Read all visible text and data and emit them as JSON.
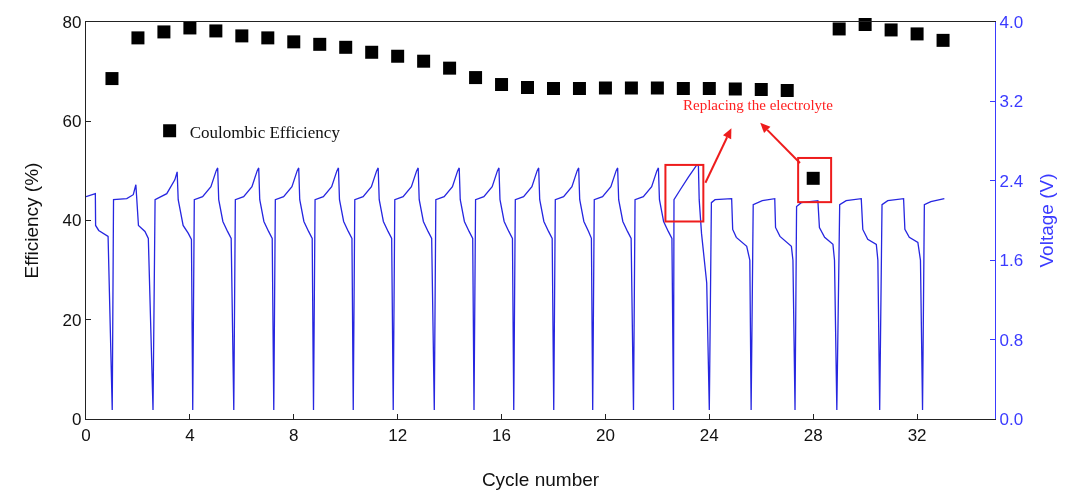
{
  "chart_data": {
    "type": "scatter",
    "xlabel": "Cycle number",
    "ylabel": "Efficiency (%)",
    "y2label": "Voltage (V)",
    "xlim": [
      0,
      35
    ],
    "xticks": [
      0,
      4,
      8,
      12,
      16,
      20,
      24,
      28,
      32
    ],
    "ylim": [
      0,
      80
    ],
    "yticks": [
      0,
      20,
      40,
      60,
      80
    ],
    "y2lim": [
      0,
      4
    ],
    "y2ticks": [
      {
        "value": 0,
        "label": "0.0"
      },
      {
        "value": 0.8,
        "label": "0.8"
      },
      {
        "value": 1.6,
        "label": "1.6"
      },
      {
        "value": 2.4,
        "label": "2.4"
      },
      {
        "value": 3.2,
        "label": "3.2"
      },
      {
        "value": 4,
        "label": "4.0"
      }
    ],
    "grid": false,
    "legend": "left",
    "annotations": [
      "Replacing the electrolyte"
    ],
    "series": [
      {
        "name": "Coulombic Efficiency",
        "marker": "square",
        "color": "#000000",
        "x": [
          1,
          2,
          3,
          4,
          5,
          6,
          7,
          8,
          9,
          10,
          11,
          12,
          13,
          14,
          15,
          16,
          17,
          18,
          19,
          20,
          21,
          22,
          23,
          24,
          25,
          26,
          27,
          28,
          29,
          30,
          31,
          32,
          33
        ],
        "values": [
          68.6,
          76.8,
          78,
          78.8,
          78.2,
          77.2,
          76.8,
          76,
          75.5,
          74.9,
          73.9,
          73.1,
          72.1,
          70.7,
          68.8,
          67.4,
          66.8,
          66.6,
          66.6,
          66.7,
          66.7,
          66.7,
          66.6,
          66.6,
          66.5,
          66.4,
          66.2,
          48.5,
          78.6,
          79.5,
          78.4,
          77.6,
          76.3
        ]
      },
      {
        "type": "line",
        "axis": "y2",
        "marker": "none",
        "line_style": "solid",
        "color": "#2626e0",
        "x": [
          0,
          0.36,
          0.37,
          0.49,
          0.85,
          1.01,
          1.06,
          1.57,
          1.82,
          1.92,
          2.02,
          2.27,
          2.4,
          2.58,
          2.66,
          3.11,
          3.42,
          3.51,
          3.55,
          3.74,
          3.94,
          4.06,
          4.11,
          4.17,
          4.49,
          4.81,
          5.01,
          5.07,
          5.11,
          5.27,
          5.45,
          5.59,
          5.69,
          5.75,
          6.07,
          6.39,
          6.59,
          6.65,
          6.69,
          6.85,
          7.03,
          7.17,
          7.23,
          7.29,
          7.61,
          7.93,
          8.13,
          8.19,
          8.23,
          8.39,
          8.57,
          8.71,
          8.76,
          8.82,
          9.14,
          9.46,
          9.66,
          9.72,
          9.76,
          9.92,
          10.1,
          10.24,
          10.29,
          10.35,
          10.67,
          10.99,
          11.19,
          11.25,
          11.29,
          11.45,
          11.63,
          11.77,
          11.83,
          11.89,
          12.21,
          12.53,
          12.73,
          12.79,
          12.83,
          12.99,
          13.17,
          13.31,
          13.41,
          13.47,
          13.79,
          14.11,
          14.31,
          14.37,
          14.41,
          14.57,
          14.75,
          14.89,
          14.94,
          15.0,
          15.32,
          15.64,
          15.84,
          15.9,
          15.94,
          16.1,
          16.28,
          16.42,
          16.47,
          16.53,
          16.85,
          17.17,
          17.37,
          17.43,
          17.47,
          17.63,
          17.81,
          17.95,
          18.01,
          18.07,
          18.39,
          18.71,
          18.91,
          18.97,
          19.01,
          19.17,
          19.35,
          19.46,
          19.51,
          19.57,
          19.89,
          20.21,
          20.41,
          20.47,
          20.51,
          20.67,
          20.85,
          20.99,
          21.08,
          21.14,
          21.46,
          21.78,
          21.98,
          22.04,
          22.08,
          22.24,
          22.42,
          22.56,
          22.62,
          22.64,
          22.88,
          23.2,
          23.52,
          23.58,
          23.61,
          23.7,
          23.9,
          24.0,
          24.08,
          24.22,
          24.86,
          24.9,
          25.04,
          25.44,
          25.56,
          25.61,
          25.69,
          26.04,
          26.52,
          26.55,
          26.72,
          27.16,
          27.22,
          27.3,
          27.36,
          27.54,
          28.18,
          28.24,
          28.44,
          28.76,
          28.82,
          28.91,
          29.02,
          29.27,
          29.85,
          29.91,
          30.1,
          30.43,
          30.49,
          30.56,
          30.65,
          30.87,
          31.48,
          31.53,
          31.7,
          32.03,
          32.13,
          32.21,
          32.28,
          32.53,
          33.05
        ],
        "values": [
          2.24,
          2.27,
          1.95,
          1.9,
          1.84,
          0.09,
          2.21,
          2.22,
          2.26,
          2.36,
          1.95,
          1.89,
          1.82,
          0.09,
          2.21,
          2.27,
          2.41,
          2.49,
          2.21,
          1.95,
          1.87,
          1.81,
          0.09,
          2.21,
          2.24,
          2.34,
          2.5,
          2.53,
          2.21,
          1.99,
          1.89,
          1.82,
          0.09,
          2.21,
          2.24,
          2.34,
          2.5,
          2.53,
          2.21,
          1.99,
          1.89,
          1.82,
          0.09,
          2.21,
          2.24,
          2.34,
          2.5,
          2.53,
          2.21,
          1.99,
          1.89,
          1.82,
          0.09,
          2.21,
          2.24,
          2.34,
          2.5,
          2.53,
          2.21,
          1.99,
          1.89,
          1.82,
          0.09,
          2.21,
          2.24,
          2.34,
          2.5,
          2.53,
          2.21,
          1.99,
          1.89,
          1.82,
          0.09,
          2.21,
          2.24,
          2.34,
          2.5,
          2.53,
          2.21,
          1.99,
          1.89,
          1.82,
          0.09,
          2.21,
          2.24,
          2.34,
          2.5,
          2.53,
          2.21,
          1.99,
          1.89,
          1.82,
          0.09,
          2.21,
          2.24,
          2.34,
          2.5,
          2.53,
          2.21,
          1.99,
          1.89,
          1.82,
          0.09,
          2.21,
          2.24,
          2.34,
          2.5,
          2.53,
          2.21,
          1.99,
          1.89,
          1.82,
          0.09,
          2.21,
          2.24,
          2.34,
          2.5,
          2.53,
          2.21,
          1.99,
          1.89,
          1.82,
          0.09,
          2.21,
          2.24,
          2.34,
          2.5,
          2.53,
          2.21,
          1.99,
          1.89,
          1.82,
          0.09,
          2.21,
          2.24,
          2.34,
          2.5,
          2.53,
          2.21,
          1.99,
          1.89,
          1.82,
          0.09,
          2.21,
          2.31,
          2.44,
          2.56,
          2.55,
          2.21,
          1.87,
          1.37,
          0.09,
          2.18,
          2.21,
          2.22,
          1.91,
          1.83,
          1.74,
          1.6,
          0.09,
          2.16,
          2.2,
          2.22,
          1.93,
          1.84,
          1.74,
          1.6,
          0.09,
          2.14,
          2.18,
          2.2,
          1.93,
          1.83,
          1.76,
          1.6,
          0.09,
          2.16,
          2.2,
          2.22,
          1.91,
          1.81,
          1.76,
          1.6,
          0.09,
          2.16,
          2.2,
          2.22,
          1.91,
          1.83,
          1.78,
          1.6,
          0.09,
          2.16,
          2.19,
          2.22
        ]
      }
    ]
  }
}
